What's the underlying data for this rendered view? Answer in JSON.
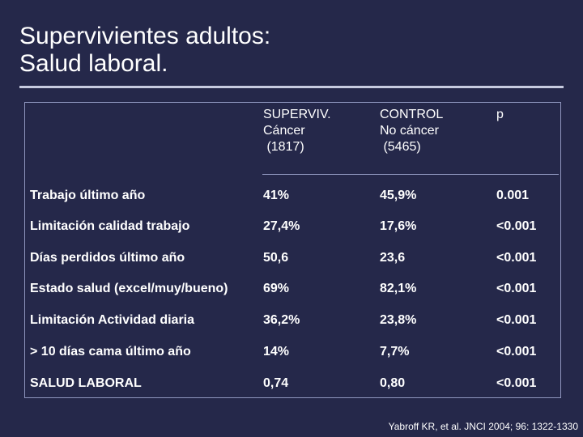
{
  "title": {
    "line1": "Supervivientes adultos:",
    "line2": "Salud laboral."
  },
  "header": {
    "col1": [
      "SUPERVIV.",
      "Cáncer",
      " (1817)"
    ],
    "col2": [
      "CONTROL",
      "No cáncer",
      " (5465)"
    ],
    "col3": "p"
  },
  "rows": [
    [
      "Trabajo último año",
      "41%",
      "45,9%",
      "0.001"
    ],
    [
      "Limitación calidad trabajo",
      "27,4%",
      "17,6%",
      "<0.001"
    ],
    [
      "Días perdidos último año",
      "50,6",
      "23,6",
      "<0.001"
    ],
    [
      "Estado salud (excel/muy/bueno)",
      "69%",
      "82,1%",
      "<0.001"
    ],
    [
      "Limitación Actividad diaria",
      "36,2%",
      "23,8%",
      "<0.001"
    ],
    [
      "> 10 días cama último año",
      "14%",
      "7,7%",
      "<0.001"
    ],
    [
      "SALUD LABORAL",
      "0,74",
      "0,80",
      "<0.001"
    ]
  ],
  "citation": "Yabroff KR, et al. JNCI 2004; 96: 1322-1330",
  "colors": {
    "background": "#25284a",
    "text": "#ffffff",
    "rule": "#c7cbe0",
    "frame": "#8f96be"
  }
}
